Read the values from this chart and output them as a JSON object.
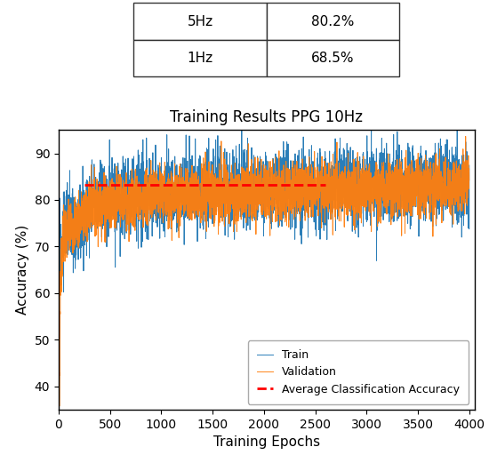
{
  "title": "Training Results PPG 10Hz",
  "xlabel": "Training Epochs",
  "ylabel": "Accuracy (%)",
  "avg_accuracy": 83.2,
  "avg_xstart": 250,
  "avg_xend": 2600,
  "ylim": [
    35,
    95
  ],
  "xlim": [
    0,
    4050
  ],
  "xticks": [
    0,
    500,
    1000,
    1500,
    2000,
    2500,
    3000,
    3500,
    4000
  ],
  "yticks": [
    40,
    50,
    60,
    70,
    80,
    90
  ],
  "n_epochs": 4001,
  "train_color": "#1f77b4",
  "val_color": "#ff7f0e",
  "avg_color": "red",
  "table_data": [
    [
      "5Hz",
      "80.2%"
    ],
    [
      "1Hz",
      "68.5%"
    ]
  ],
  "train_seed": 12,
  "val_seed": 7,
  "legend_labels": [
    "Train",
    "Validation",
    "Average Classification Accuracy"
  ],
  "figsize": [
    5.5,
    5.12
  ],
  "dpi": 100
}
